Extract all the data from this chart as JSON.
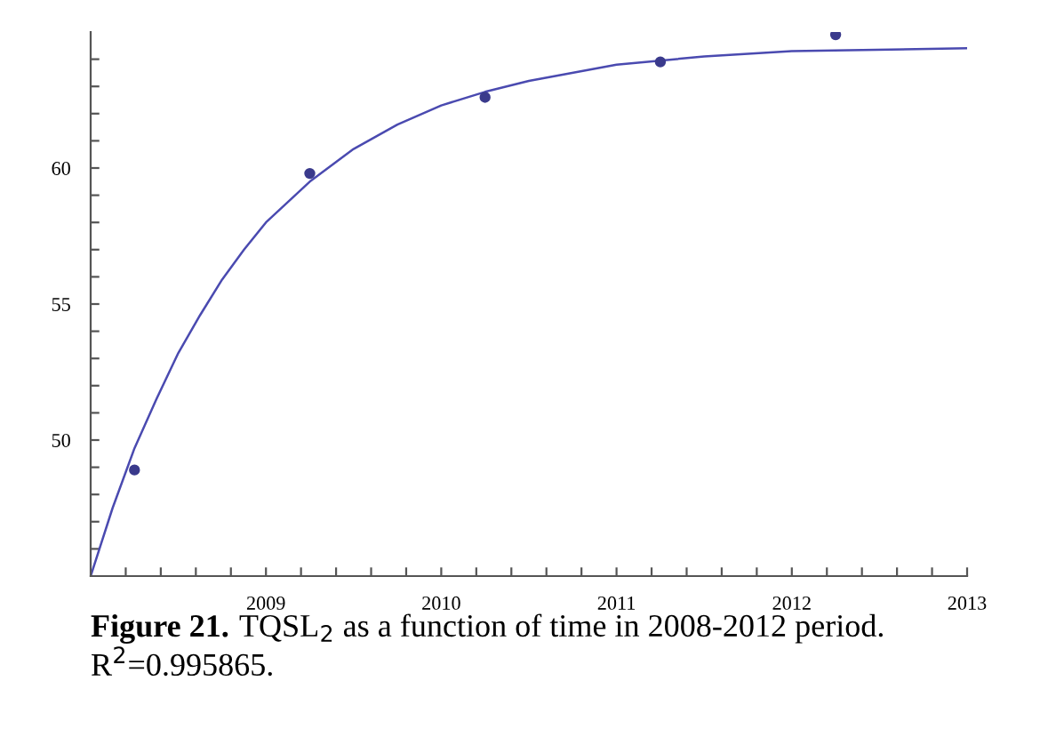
{
  "chart_data": {
    "type": "scatter",
    "annotations": [
      "Figure 21.",
      "TQSL$_{2}$ as a function of time in 2008-2012 period.",
      "R$^{2}$=0.995865."
    ],
    "series": [
      {
        "marker": "circle",
        "color": "#3a3a8c",
        "x": [
          2008.25,
          2009.25,
          2010.25,
          2011.25,
          2012.25
        ],
        "values": [
          48.9,
          59.8,
          62.6,
          63.9,
          64.9
        ]
      },
      {
        "type": "line",
        "color": "#4a4ab0",
        "x": [
          2008,
          2008.125,
          2008.25,
          2008.375,
          2008.5,
          2008.625,
          2008.75,
          2008.875,
          2009,
          2009.25,
          2009.5,
          2009.75,
          2010,
          2010.25,
          2010.5,
          2011,
          2011.5,
          2012,
          2013
        ],
        "values": [
          45.0,
          47.5,
          49.7,
          51.5,
          53.2,
          54.6,
          55.9,
          57.0,
          58.0,
          59.5,
          60.7,
          61.6,
          62.3,
          62.8,
          63.2,
          63.8,
          64.1,
          64.3,
          64.4
        ]
      }
    ],
    "xlim": [
      2008,
      2013
    ],
    "ylim": [
      45,
      65
    ],
    "xticks": [
      {
        "value": 2008.2,
        "label": null
      },
      {
        "value": 2008.4,
        "label": null
      },
      {
        "value": 2008.6,
        "label": null
      },
      {
        "value": 2008.8,
        "label": null
      },
      2009,
      {
        "value": 2009.2,
        "label": null
      },
      {
        "value": 2009.4,
        "label": null
      },
      {
        "value": 2009.6,
        "label": null
      },
      {
        "value": 2009.8,
        "label": null
      },
      2010,
      {
        "value": 2010.2,
        "label": null
      },
      {
        "value": 2010.4,
        "label": null
      },
      {
        "value": 2010.6,
        "label": null
      },
      {
        "value": 2010.8,
        "label": null
      },
      2011,
      {
        "value": 2011.2,
        "label": null
      },
      {
        "value": 2011.4,
        "label": null
      },
      {
        "value": 2011.6,
        "label": null
      },
      {
        "value": 2011.8,
        "label": null
      },
      2012,
      {
        "value": 2012.2,
        "label": null
      },
      {
        "value": 2012.4,
        "label": null
      },
      {
        "value": 2012.6,
        "label": null
      },
      {
        "value": 2012.8,
        "label": null
      },
      2013
    ],
    "yticks": [
      {
        "value": 46,
        "label": null
      },
      {
        "value": 47,
        "label": null
      },
      {
        "value": 48,
        "label": null
      },
      {
        "value": 49,
        "label": null
      },
      50,
      {
        "value": 51,
        "label": null
      },
      {
        "value": 52,
        "label": null
      },
      {
        "value": 53,
        "label": null
      },
      {
        "value": 54,
        "label": null
      },
      55,
      {
        "value": 56,
        "label": null
      },
      {
        "value": 57,
        "label": null
      },
      {
        "value": 58,
        "label": null
      },
      {
        "value": 59,
        "label": null
      },
      60,
      {
        "value": 61,
        "label": null
      },
      {
        "value": 62,
        "label": null
      },
      {
        "value": 63,
        "label": null
      },
      {
        "value": 64,
        "label": null
      }
    ]
  }
}
